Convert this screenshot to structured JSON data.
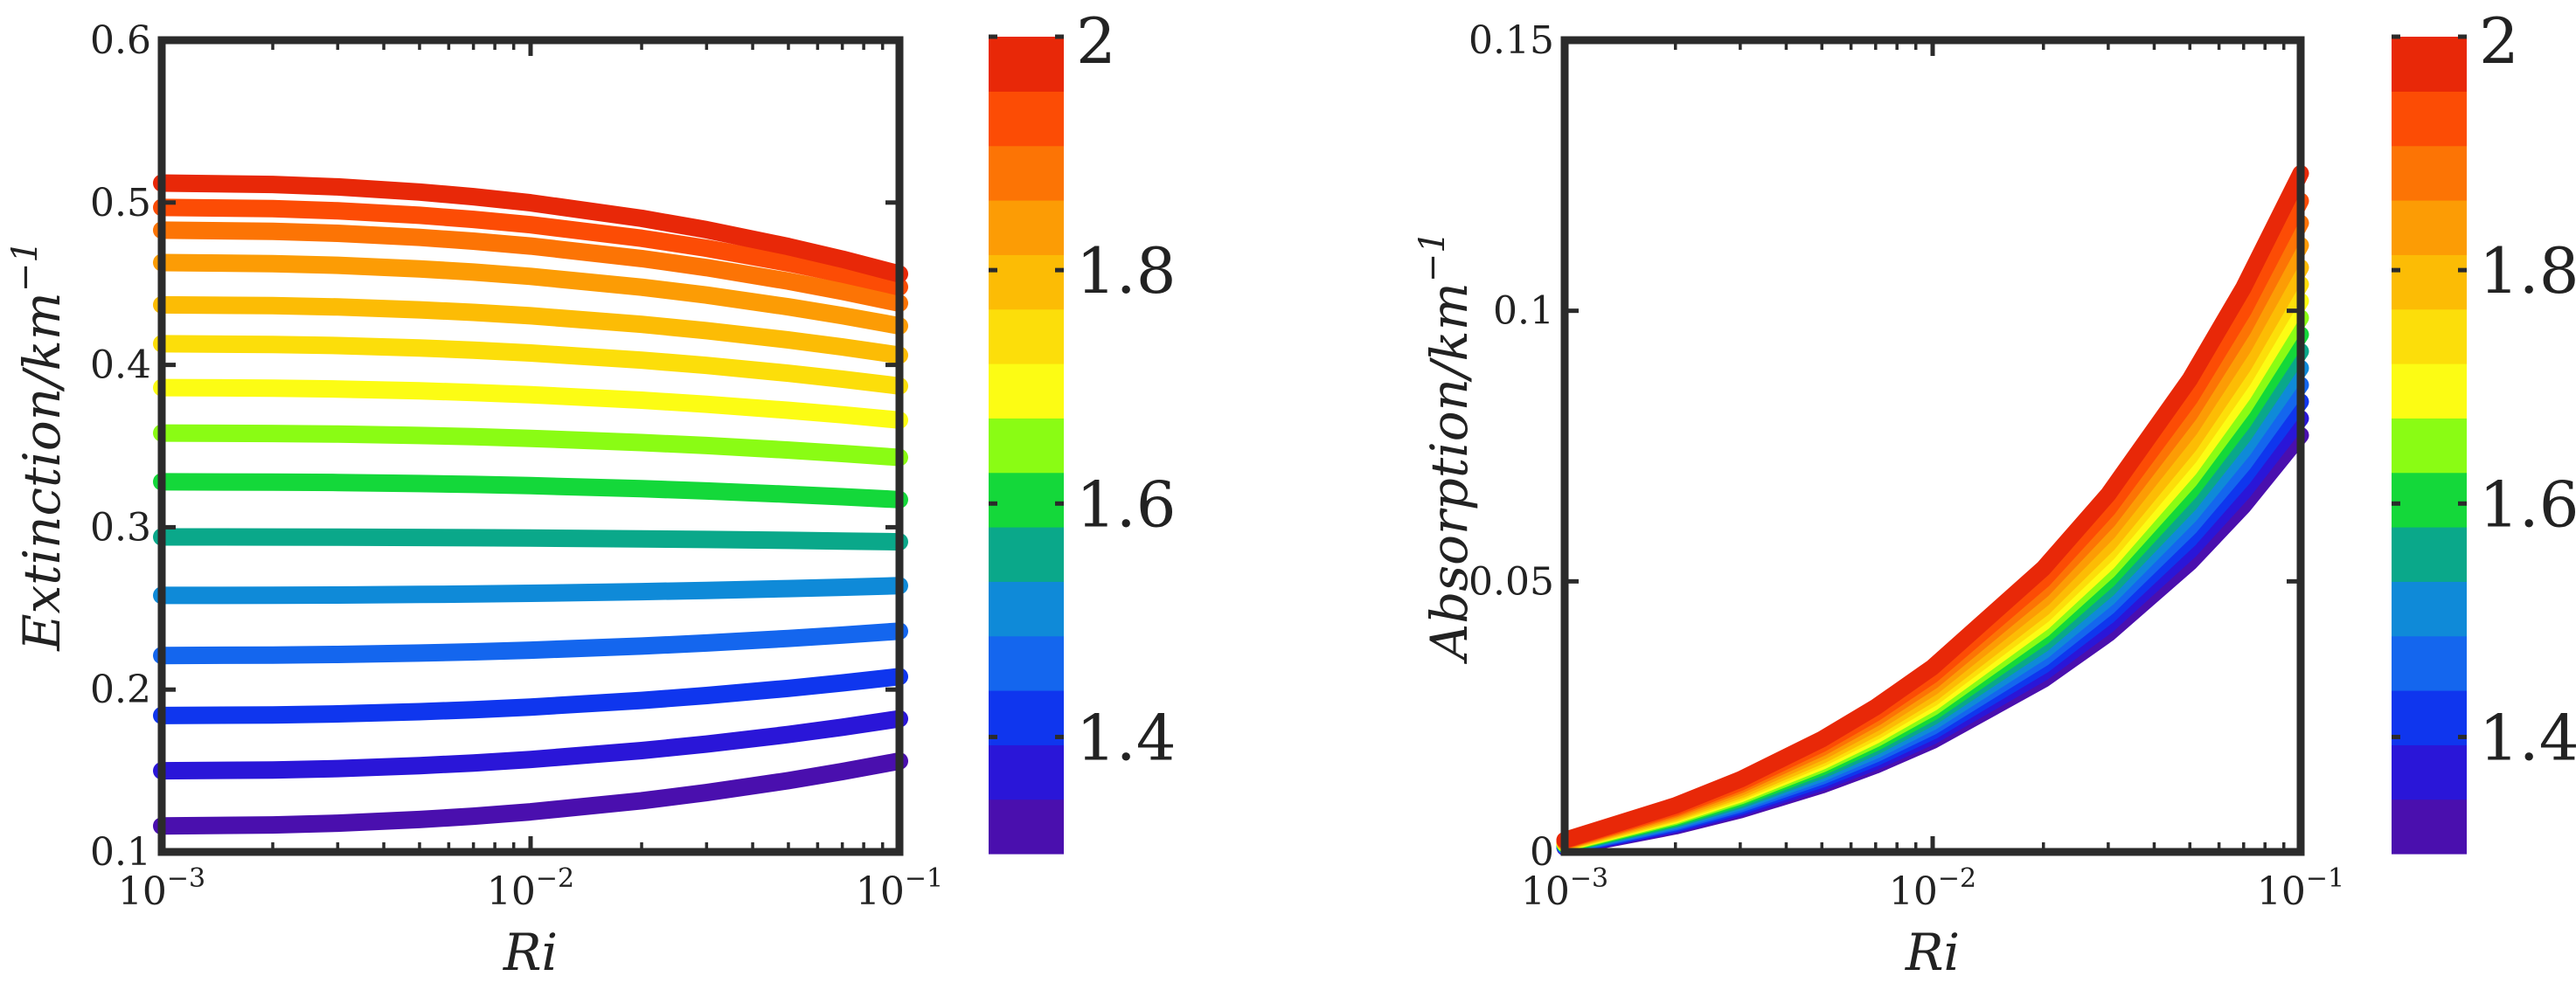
{
  "chart_data": [
    {
      "type": "line",
      "id": "extinction",
      "xlabel": "Ri",
      "ylabel": "Extinction/km",
      "ylabel_sup": "−1",
      "xscale": "log",
      "xlim": [
        0.001,
        0.1
      ],
      "ylim": [
        0.1,
        0.6
      ],
      "x": [
        0.001,
        0.002,
        0.003,
        0.005,
        0.007,
        0.01,
        0.02,
        0.03,
        0.05,
        0.07,
        0.1
      ],
      "xtick_labels": [
        {
          "base": "10",
          "exp": "−3"
        },
        {
          "base": "10",
          "exp": "−2"
        },
        {
          "base": "10",
          "exp": "−1"
        }
      ],
      "yticks": [
        0.1,
        0.2,
        0.3,
        0.4,
        0.5,
        0.6
      ],
      "ytick_labels": [
        "0.1",
        "0.2",
        "0.3",
        "0.4",
        "0.5",
        "0.6"
      ],
      "series": [
        {
          "name": "1.3",
          "start": 0.116,
          "end": 0.156
        },
        {
          "name": "1.35",
          "start": 0.15,
          "end": 0.182
        },
        {
          "name": "1.4",
          "start": 0.184,
          "end": 0.208
        },
        {
          "name": "1.45",
          "start": 0.221,
          "end": 0.236
        },
        {
          "name": "1.5",
          "start": 0.258,
          "end": 0.264
        },
        {
          "name": "1.55",
          "start": 0.294,
          "end": 0.291
        },
        {
          "name": "1.6",
          "start": 0.328,
          "end": 0.317
        },
        {
          "name": "1.65",
          "start": 0.358,
          "end": 0.343
        },
        {
          "name": "1.7",
          "start": 0.386,
          "end": 0.366
        },
        {
          "name": "1.75",
          "start": 0.413,
          "end": 0.387
        },
        {
          "name": "1.8",
          "start": 0.437,
          "end": 0.406
        },
        {
          "name": "1.85",
          "start": 0.463,
          "end": 0.424
        },
        {
          "name": "1.9",
          "start": 0.483,
          "end": 0.438
        },
        {
          "name": "1.95",
          "start": 0.497,
          "end": 0.448
        },
        {
          "name": "2",
          "start": 0.512,
          "end": 0.456
        }
      ]
    },
    {
      "type": "line",
      "id": "absorption",
      "xlabel": "Ri",
      "ylabel": "Absorption/km",
      "ylabel_sup": "−1",
      "xscale": "log",
      "xlim": [
        0.001,
        0.1
      ],
      "ylim": [
        0,
        0.15
      ],
      "x": [
        0.001,
        0.002,
        0.003,
        0.005,
        0.007,
        0.01,
        0.02,
        0.03,
        0.05,
        0.07,
        0.1
      ],
      "xtick_labels": [
        {
          "base": "10",
          "exp": "−3"
        },
        {
          "base": "10",
          "exp": "−2"
        },
        {
          "base": "10",
          "exp": "−1"
        }
      ],
      "yticks": [
        0,
        0.05,
        0.1,
        0.15
      ],
      "ytick_labels": [
        "0",
        "0.05",
        "0.1",
        "0.15"
      ],
      "series": [
        {
          "name": "1.3",
          "end": 0.077
        },
        {
          "name": "1.35",
          "end": 0.08
        },
        {
          "name": "1.4",
          "end": 0.083
        },
        {
          "name": "1.45",
          "end": 0.086
        },
        {
          "name": "1.5",
          "end": 0.089
        },
        {
          "name": "1.55",
          "end": 0.092
        },
        {
          "name": "1.6",
          "end": 0.095
        },
        {
          "name": "1.65",
          "end": 0.098
        },
        {
          "name": "1.7",
          "end": 0.101
        },
        {
          "name": "1.75",
          "end": 0.104
        },
        {
          "name": "1.8",
          "end": 0.107
        },
        {
          "name": "1.85",
          "end": 0.111
        },
        {
          "name": "1.9",
          "end": 0.115
        },
        {
          "name": "1.95",
          "end": 0.119
        },
        {
          "name": "2",
          "end": 0.124
        }
      ]
    }
  ],
  "colorbar": {
    "min": 1.3,
    "max": 2.0,
    "tick_values": [
      2,
      1.8,
      1.6,
      1.4
    ],
    "tick_labels": [
      "2",
      "1.8",
      "1.6",
      "1.4"
    ],
    "colors": [
      "#4a0fae",
      "#2a16d8",
      "#0f36ee",
      "#1466ee",
      "#0f8ad8",
      "#0aa88a",
      "#14d83a",
      "#8afc14",
      "#fcfc14",
      "#fcde0a",
      "#fcbc05",
      "#fc9c05",
      "#fc7405",
      "#fc4c05",
      "#e82808"
    ]
  }
}
